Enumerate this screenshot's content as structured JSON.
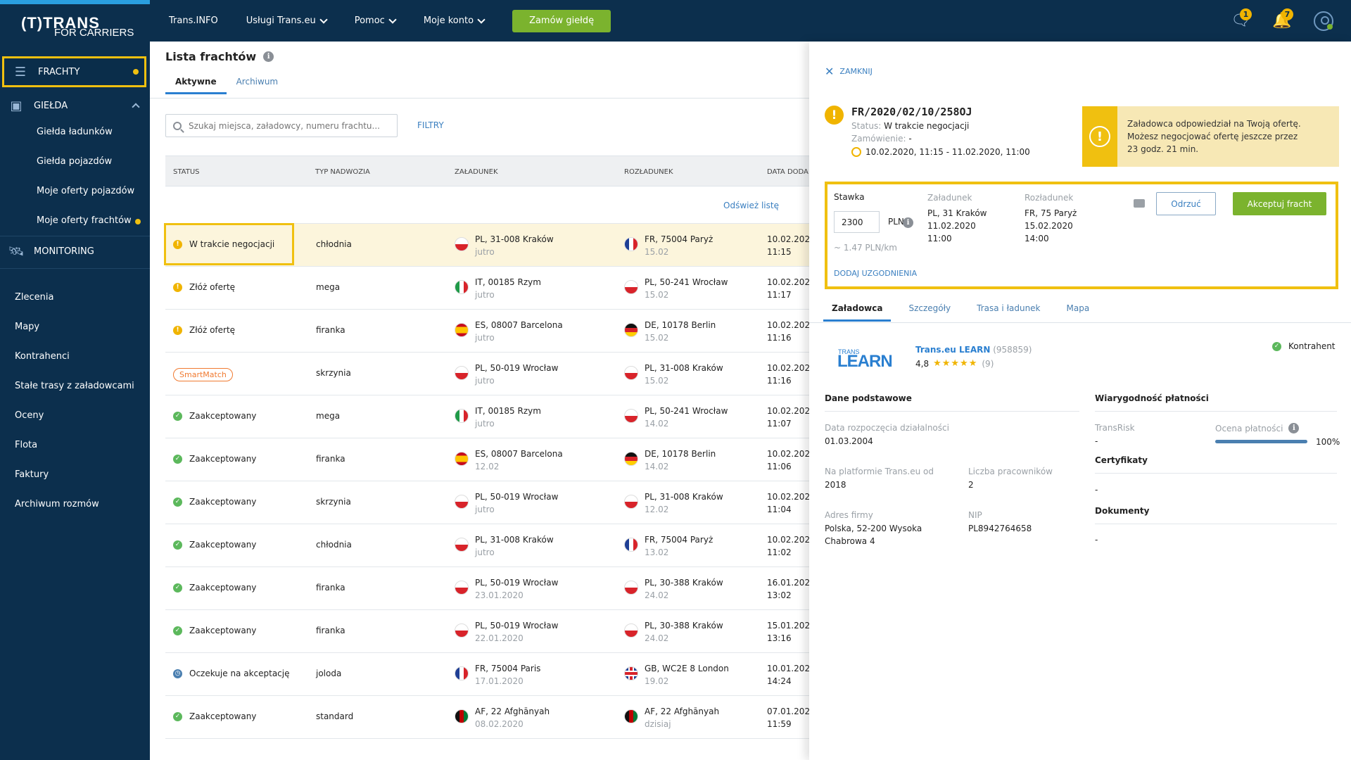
{
  "logo": {
    "main": "(T)TRANS",
    "sub": "FOR CARRIERS"
  },
  "nav": {
    "items": [
      "Trans.INFO",
      "Usługi Trans.eu",
      "Pomoc",
      "Moje konto"
    ],
    "order_btn": "Zamów giełdę"
  },
  "top_icons": {
    "chat_badge": "1",
    "bell_badge": "7"
  },
  "sidebar": {
    "frachty": "FRACHTY",
    "gielda": "GIEŁDA",
    "gielda_sub": [
      "Giełda ładunków",
      "Giełda pojazdów",
      "Moje oferty pojazdów",
      "Moje oferty frachtów"
    ],
    "monitoring": "MONITORING",
    "items": [
      "Zlecenia",
      "Mapy",
      "Kontrahenci",
      "Stałe trasy z załadowcami",
      "Oceny",
      "Flota",
      "Faktury",
      "Archiwum rozmów"
    ]
  },
  "main": {
    "title": "Lista frachtów",
    "tabs": [
      "Aktywne",
      "Archiwum"
    ],
    "search_placeholder": "Szukaj miejsca, załadowcy, numeru frachtu...",
    "filtry": "FILTRY",
    "refresh": "Odśwież listę",
    "columns": [
      "STATUS",
      "TYP NADWOZIA",
      "ZAŁADUNEK",
      "ROZŁADUNEK",
      "DATA DODA"
    ],
    "rows": [
      {
        "status": "W trakcie negocjacji",
        "kind": "warn",
        "body": "chłodnia",
        "load": "PL, 31-008 Kraków",
        "load_d": "jutro",
        "lf": "pl",
        "unload": "FR, 75004 Paryż",
        "unload_d": "15.02",
        "uf": "fr",
        "date": "10.02.202",
        "time": "11:15"
      },
      {
        "status": "Złóż ofertę",
        "kind": "warn",
        "body": "mega",
        "load": "IT, 00185 Rzym",
        "load_d": "jutro",
        "lf": "it",
        "unload": "PL, 50-241 Wrocław",
        "unload_d": "15.02",
        "uf": "pl",
        "date": "10.02.202",
        "time": "11:17"
      },
      {
        "status": "Złóż ofertę",
        "kind": "warn",
        "body": "firanka",
        "load": "ES, 08007 Barcelona",
        "load_d": "jutro",
        "lf": "es",
        "unload": "DE, 10178 Berlin",
        "unload_d": "15.02",
        "uf": "de",
        "date": "10.02.202",
        "time": "11:16"
      },
      {
        "status": "SmartMatch",
        "kind": "smart",
        "body": "skrzynia",
        "load": "PL, 50-019 Wrocław",
        "load_d": "jutro",
        "lf": "pl",
        "unload": "PL, 31-008 Kraków",
        "unload_d": "15.02",
        "uf": "pl",
        "date": "10.02.202",
        "time": "11:16"
      },
      {
        "status": "Zaakceptowany",
        "kind": "ok",
        "body": "mega",
        "load": "IT, 00185 Rzym",
        "load_d": "jutro",
        "lf": "it",
        "unload": "PL, 50-241 Wrocław",
        "unload_d": "14.02",
        "uf": "pl",
        "date": "10.02.202",
        "time": "11:07"
      },
      {
        "status": "Zaakceptowany",
        "kind": "ok",
        "body": "firanka",
        "load": "ES, 08007 Barcelona",
        "load_d": "12.02",
        "lf": "es",
        "unload": "DE, 10178 Berlin",
        "unload_d": "14.02",
        "uf": "de",
        "date": "10.02.202",
        "time": "11:06"
      },
      {
        "status": "Zaakceptowany",
        "kind": "ok",
        "body": "skrzynia",
        "load": "PL, 50-019 Wrocław",
        "load_d": "jutro",
        "lf": "pl",
        "unload": "PL, 31-008 Kraków",
        "unload_d": "12.02",
        "uf": "pl",
        "date": "10.02.202",
        "time": "11:04"
      },
      {
        "status": "Zaakceptowany",
        "kind": "ok",
        "body": "chłodnia",
        "load": "PL, 31-008 Kraków",
        "load_d": "jutro",
        "lf": "pl",
        "unload": "FR, 75004 Paryż",
        "unload_d": "13.02",
        "uf": "fr",
        "date": "10.02.202",
        "time": "11:02"
      },
      {
        "status": "Zaakceptowany",
        "kind": "ok",
        "body": "firanka",
        "load": "PL, 50-019 Wrocław",
        "load_d": "23.01.2020",
        "lf": "pl",
        "unload": "PL, 30-388 Kraków",
        "unload_d": "24.02",
        "uf": "pl",
        "date": "16.01.202",
        "time": "13:02"
      },
      {
        "status": "Zaakceptowany",
        "kind": "ok",
        "body": "firanka",
        "load": "PL, 50-019 Wrocław",
        "load_d": "22.01.2020",
        "lf": "pl",
        "unload": "PL, 30-388 Kraków",
        "unload_d": "24.02",
        "uf": "pl",
        "date": "15.01.202",
        "time": "13:16"
      },
      {
        "status": "Oczekuje na akceptację",
        "kind": "wait",
        "body": "joloda",
        "load": "FR, 75004 Paris",
        "load_d": "17.01.2020",
        "lf": "fr",
        "unload": "GB, WC2E 8 London",
        "unload_d": "19.02",
        "uf": "gb",
        "date": "10.01.202",
        "time": "14:24"
      },
      {
        "status": "Zaakceptowany",
        "kind": "ok",
        "body": "standard",
        "load": "AF, 22 Afghānyah",
        "load_d": "08.02.2020",
        "lf": "af",
        "unload": "AF, 22 Afghānyah",
        "unload_d": "dzisiaj",
        "uf": "af",
        "date": "07.01.202",
        "time": "11:59"
      }
    ]
  },
  "panel": {
    "close": "ZAMKNIJ",
    "ref": "FR/2020/02/10/258OJ",
    "status_lbl": "Status:",
    "status_val": "W trakcie negocjacji",
    "order_lbl": "Zamówienie:",
    "order_val": "-",
    "dates": "10.02.2020, 11:15 - 11.02.2020, 11:00",
    "alert": [
      "Załadowca odpowiedział na Twoją ofertę.",
      "Możesz negocjować ofertę jeszcze przez",
      "23 godz. 21 min."
    ],
    "offer": {
      "stawka": "Stawka",
      "rate": "2300",
      "currency": "PLN",
      "per_km": "~ 1.47 PLN/km",
      "zal_lbl": "Załadunek",
      "zal": [
        "PL, 31 Kraków",
        "11.02.2020",
        "11:00"
      ],
      "roz_lbl": "Rozładunek",
      "roz": [
        "FR, 75 Paryż",
        "15.02.2020",
        "14:00"
      ],
      "reject": "Odrzuć",
      "accept": "Akceptuj fracht",
      "add": "DODAJ UZGODNIENIA"
    },
    "tabs": [
      "Załadowca",
      "Szczegóły",
      "Trasa i ładunek",
      "Mapa"
    ],
    "company": {
      "logo_small": "TRANS",
      "logo_big": "LEARN",
      "name": "Trans.eu LEARN",
      "id": "(958859)",
      "rating": "4,8",
      "stars": "★★★★★",
      "count": "(9)",
      "kontrahent": "Kontrahent"
    },
    "basic": {
      "title": "Dane podstawowe",
      "start_lbl": "Data rozpoczęcia działalności",
      "start": "01.03.2004",
      "platform_lbl": "Na platformie Trans.eu od",
      "platform": "2018",
      "emp_lbl": "Liczba pracowników",
      "emp": "2",
      "addr_lbl": "Adres firmy",
      "addr": [
        "Polska, 52-200 Wysoka",
        "Chabrowa 4"
      ],
      "nip_lbl": "NIP",
      "nip": "PL8942764658"
    },
    "payment": {
      "title": "Wiarygodność płatności",
      "transrisk_lbl": "TransRisk",
      "transrisk": "-",
      "score_lbl": "Ocena płatności",
      "score_pct": "100%",
      "score_value": 1.0,
      "cert_title": "Certyfikaty",
      "cert": "-",
      "docs_title": "Dokumenty",
      "docs": "-"
    }
  }
}
